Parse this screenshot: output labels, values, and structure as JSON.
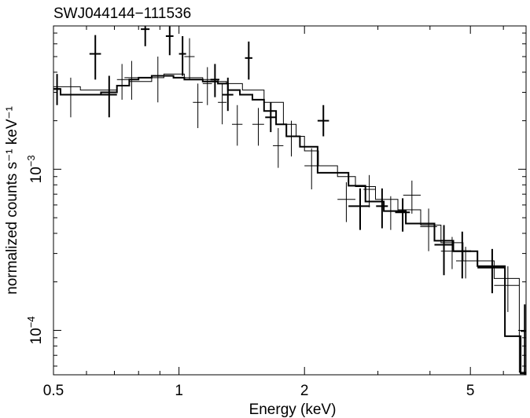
{
  "chart_data": {
    "type": "scatter",
    "title": "SWJ044144−111536",
    "xlabel": "Energy (keV)",
    "ylabel": "normalized counts s⁻¹ keV⁻¹",
    "xscale": "log",
    "yscale": "log",
    "xlim": [
      0.5,
      6.8
    ],
    "ylim": [
      5.3e-05,
      0.00775
    ],
    "x_ticks": [
      {
        "value": 0.5,
        "label": "0.5"
      },
      {
        "value": 1,
        "label": "1"
      },
      {
        "value": 2,
        "label": "2"
      },
      {
        "value": 5,
        "label": "5"
      }
    ],
    "y_ticks": [
      {
        "value": 0.0001,
        "base": "10",
        "exp": "−4"
      },
      {
        "value": 0.001,
        "base": "10",
        "exp": "−3"
      }
    ],
    "grid": false,
    "legend": "none",
    "series": [
      {
        "style": "thick",
        "points": [
          {
            "x": 0.51,
            "xlo": 0.5,
            "xhi": 0.52,
            "y": 0.00315,
            "ylo": 0.0025,
            "yhi": 0.0039
          },
          {
            "x": 0.63,
            "xlo": 0.61,
            "xhi": 0.65,
            "y": 0.0052,
            "ylo": 0.0036,
            "yhi": 0.0068
          },
          {
            "x": 0.68,
            "xlo": 0.65,
            "xhi": 0.71,
            "y": 0.0029,
            "ylo": 0.0021,
            "yhi": 0.0038
          },
          {
            "x": 0.83,
            "xlo": 0.81,
            "xhi": 0.85,
            "y": 0.0074,
            "ylo": 0.0058,
            "yhi": 0.0077
          },
          {
            "x": 0.95,
            "xlo": 0.93,
            "xhi": 0.97,
            "y": 0.0067,
            "ylo": 0.0051,
            "yhi": 0.0077
          },
          {
            "x": 1.02,
            "xlo": 1.0,
            "xhi": 1.04,
            "y": 0.0052,
            "ylo": 0.0038,
            "yhi": 0.0067
          },
          {
            "x": 1.22,
            "xlo": 1.19,
            "xhi": 1.25,
            "y": 0.0036,
            "ylo": 0.0028,
            "yhi": 0.0045
          },
          {
            "x": 1.31,
            "xlo": 1.27,
            "xhi": 1.35,
            "y": 0.0029,
            "ylo": 0.0023,
            "yhi": 0.0037
          },
          {
            "x": 1.47,
            "xlo": 1.44,
            "xhi": 1.5,
            "y": 0.0049,
            "ylo": 0.0036,
            "yhi": 0.0062
          },
          {
            "x": 1.66,
            "xlo": 1.61,
            "xhi": 1.71,
            "y": 0.0021,
            "ylo": 0.0017,
            "yhi": 0.0026
          },
          {
            "x": 2.22,
            "xlo": 2.15,
            "xhi": 2.29,
            "y": 0.002,
            "ylo": 0.0016,
            "yhi": 0.0025
          },
          {
            "x": 2.72,
            "xlo": 2.55,
            "xhi": 2.87,
            "y": 0.00059,
            "ylo": 0.00042,
            "yhi": 0.00076
          },
          {
            "x": 3.07,
            "xlo": 2.97,
            "xhi": 3.17,
            "y": 0.00059,
            "ylo": 0.00043,
            "yhi": 0.00076
          },
          {
            "x": 3.44,
            "xlo": 3.3,
            "xhi": 3.58,
            "y": 0.00054,
            "ylo": 0.00041,
            "yhi": 0.00066
          },
          {
            "x": 4.32,
            "xlo": 4.1,
            "xhi": 4.55,
            "y": 0.00034,
            "ylo": 0.00022,
            "yhi": 0.00045
          },
          {
            "x": 4.78,
            "xlo": 4.55,
            "xhi": 5.02,
            "y": 0.00031,
            "ylo": 0.00021,
            "yhi": 0.00041
          },
          {
            "x": 5.64,
            "xlo": 5.2,
            "xhi": 6.05,
            "y": 0.000245,
            "ylo": 0.00017,
            "yhi": 0.00032
          },
          {
            "x": 6.75,
            "xlo": 6.6,
            "xhi": 6.8,
            "y": 9.9e-05,
            "ylo": 5.3e-05,
            "yhi": 0.000145
          }
        ]
      },
      {
        "style": "thin",
        "points": [
          {
            "x": 0.55,
            "xlo": 0.52,
            "xhi": 0.58,
            "y": 0.0029,
            "ylo": 0.0021,
            "yhi": 0.0037
          },
          {
            "x": 0.73,
            "xlo": 0.71,
            "xhi": 0.76,
            "y": 0.0036,
            "ylo": 0.0027,
            "yhi": 0.0045
          },
          {
            "x": 0.77,
            "xlo": 0.74,
            "xhi": 0.8,
            "y": 0.0037,
            "ylo": 0.0027,
            "yhi": 0.0047
          },
          {
            "x": 0.89,
            "xlo": 0.86,
            "xhi": 0.92,
            "y": 0.0038,
            "ylo": 0.0026,
            "yhi": 0.005
          },
          {
            "x": 1.06,
            "xlo": 1.03,
            "xhi": 1.09,
            "y": 0.005,
            "ylo": 0.0036,
            "yhi": 0.0065
          },
          {
            "x": 1.11,
            "xlo": 1.08,
            "xhi": 1.14,
            "y": 0.0026,
            "ylo": 0.0018,
            "yhi": 0.0034
          },
          {
            "x": 1.17,
            "xlo": 1.14,
            "xhi": 1.2,
            "y": 0.0034,
            "ylo": 0.0025,
            "yhi": 0.0043
          },
          {
            "x": 1.27,
            "xlo": 1.24,
            "xhi": 1.3,
            "y": 0.0026,
            "ylo": 0.0019,
            "yhi": 0.0034
          },
          {
            "x": 1.38,
            "xlo": 1.34,
            "xhi": 1.42,
            "y": 0.0019,
            "ylo": 0.0014,
            "yhi": 0.0025
          },
          {
            "x": 1.55,
            "xlo": 1.5,
            "xhi": 1.6,
            "y": 0.0019,
            "ylo": 0.0014,
            "yhi": 0.0024
          },
          {
            "x": 1.73,
            "xlo": 1.68,
            "xhi": 1.78,
            "y": 0.0014,
            "ylo": 0.00102,
            "yhi": 0.0018
          },
          {
            "x": 1.86,
            "xlo": 1.81,
            "xhi": 1.91,
            "y": 0.0016,
            "ylo": 0.0012,
            "yhi": 0.002
          },
          {
            "x": 2.08,
            "xlo": 2.0,
            "xhi": 2.16,
            "y": 0.00105,
            "ylo": 0.00075,
            "yhi": 0.00135
          },
          {
            "x": 2.52,
            "xlo": 2.4,
            "xhi": 2.65,
            "y": 0.00065,
            "ylo": 0.00047,
            "yhi": 0.00083
          },
          {
            "x": 2.86,
            "xlo": 2.77,
            "xhi": 2.96,
            "y": 0.00075,
            "ylo": 0.00058,
            "yhi": 0.00092
          },
          {
            "x": 3.22,
            "xlo": 3.1,
            "xhi": 3.35,
            "y": 0.00055,
            "ylo": 0.00042,
            "yhi": 0.00068
          },
          {
            "x": 3.62,
            "xlo": 3.45,
            "xhi": 3.8,
            "y": 0.00069,
            "ylo": 0.00053,
            "yhi": 0.00085
          },
          {
            "x": 3.97,
            "xlo": 3.79,
            "xhi": 4.16,
            "y": 0.00044,
            "ylo": 0.00031,
            "yhi": 0.00057
          },
          {
            "x": 4.52,
            "xlo": 4.25,
            "xhi": 4.8,
            "y": 0.00031,
            "ylo": 0.00024,
            "yhi": 0.00038
          },
          {
            "x": 4.87,
            "xlo": 4.62,
            "xhi": 5.12,
            "y": 0.00027,
            "ylo": 0.00021,
            "yhi": 0.00033
          },
          {
            "x": 6.15,
            "xlo": 5.7,
            "xhi": 6.55,
            "y": 0.00019,
            "ylo": 0.00013,
            "yhi": 0.00025
          }
        ]
      }
    ],
    "models": [
      {
        "style": "thick",
        "steps": [
          [
            0.5,
            0.00315
          ],
          [
            0.52,
            0.0029
          ],
          [
            0.61,
            0.0029
          ],
          [
            0.65,
            0.003
          ],
          [
            0.71,
            0.0033
          ],
          [
            0.76,
            0.0036
          ],
          [
            0.8,
            0.0037
          ],
          [
            0.86,
            0.0038
          ],
          [
            0.92,
            0.0038
          ],
          [
            0.97,
            0.0037
          ],
          [
            1.03,
            0.0036
          ],
          [
            1.09,
            0.0036
          ],
          [
            1.14,
            0.0035
          ],
          [
            1.24,
            0.0034
          ],
          [
            1.31,
            0.0031
          ],
          [
            1.4,
            0.0029
          ],
          [
            1.5,
            0.0027
          ],
          [
            1.6,
            0.0023
          ],
          [
            1.71,
            0.0019
          ],
          [
            1.81,
            0.0016
          ],
          [
            1.95,
            0.00138
          ],
          [
            2.15,
            0.00095
          ],
          [
            2.35,
            0.00095
          ],
          [
            2.55,
            0.00079
          ],
          [
            2.8,
            0.00063
          ],
          [
            3.1,
            0.00055
          ],
          [
            3.5,
            0.00046
          ],
          [
            4.1,
            0.00036
          ],
          [
            4.55,
            0.00031
          ],
          [
            5.2,
            0.00025
          ],
          [
            6.05,
            9.2e-05
          ],
          [
            6.6,
            5.4e-05
          ],
          [
            6.8,
            5.4e-05
          ]
        ]
      },
      {
        "style": "thin",
        "steps": [
          [
            0.5,
            0.00325
          ],
          [
            0.58,
            0.0031
          ],
          [
            0.71,
            0.0033
          ],
          [
            0.76,
            0.0035
          ],
          [
            0.86,
            0.0037
          ],
          [
            0.92,
            0.0039
          ],
          [
            0.97,
            0.0039
          ],
          [
            1.03,
            0.0037
          ],
          [
            1.14,
            0.0036
          ],
          [
            1.24,
            0.0035
          ],
          [
            1.3,
            0.0034
          ],
          [
            1.42,
            0.0031
          ],
          [
            1.6,
            0.0026
          ],
          [
            1.78,
            0.0019
          ],
          [
            1.91,
            0.0016
          ],
          [
            2.0,
            0.0013
          ],
          [
            2.16,
            0.00105
          ],
          [
            2.4,
            0.0009
          ],
          [
            2.65,
            0.00078
          ],
          [
            2.96,
            0.00065
          ],
          [
            3.35,
            0.00056
          ],
          [
            3.8,
            0.00045
          ],
          [
            4.25,
            0.00035
          ],
          [
            4.8,
            0.00027
          ],
          [
            5.7,
            0.00021
          ],
          [
            6.55,
            5.5e-05
          ],
          [
            6.8,
            5.5e-05
          ]
        ]
      }
    ]
  }
}
